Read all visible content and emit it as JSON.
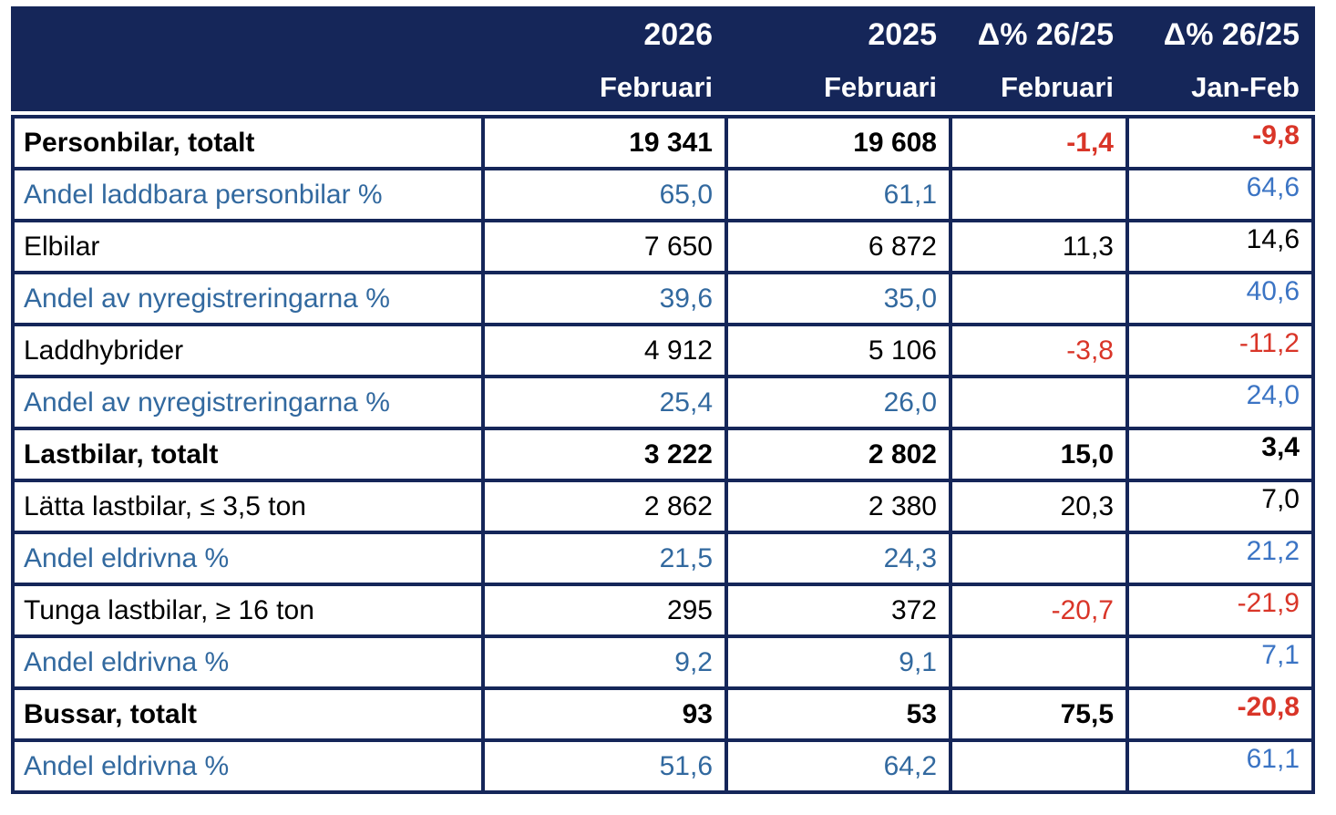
{
  "colors": {
    "header_background": "#152659",
    "grid_border": "#152659",
    "header_text": "#FFFFFF",
    "body_text": "#000000",
    "share_row_blue": "#32699F",
    "janfeb_blue": "#3B74C4",
    "negative_red": "#D93528"
  },
  "chart_data": {
    "type": "table",
    "columns": [
      {
        "year": "2026",
        "period": "Februari"
      },
      {
        "year": "2025",
        "period": "Februari"
      },
      {
        "year": "Δ% 26/25",
        "period": "Februari"
      },
      {
        "year": "Δ% 26/25",
        "period": "Jan-Feb"
      }
    ],
    "rows": [
      {
        "label": "Personbilar, totalt",
        "values": [
          "19 341",
          "19 608",
          "-1,4",
          "-9,8"
        ],
        "style": "total"
      },
      {
        "label": "Andel laddbara personbilar %",
        "values": [
          "65,0",
          "61,1",
          "",
          "64,6"
        ],
        "style": "share"
      },
      {
        "label": "Elbilar",
        "values": [
          "7 650",
          "6 872",
          "11,3",
          "14,6"
        ],
        "style": "sub"
      },
      {
        "label": "Andel av nyregistreringarna %",
        "values": [
          "39,6",
          "35,0",
          "",
          "40,6"
        ],
        "style": "share"
      },
      {
        "label": "Laddhybrider",
        "values": [
          "4 912",
          "5 106",
          "-3,8",
          "-11,2"
        ],
        "style": "sub"
      },
      {
        "label": "Andel av nyregistreringarna %",
        "values": [
          "25,4",
          "26,0",
          "",
          "24,0"
        ],
        "style": "share"
      },
      {
        "label": "Lastbilar, totalt",
        "values": [
          "3 222",
          "2 802",
          "15,0",
          "3,4"
        ],
        "style": "total"
      },
      {
        "label": "Lätta lastbilar, ≤ 3,5 ton",
        "values": [
          "2 862",
          "2 380",
          "20,3",
          "7,0"
        ],
        "style": "sub"
      },
      {
        "label": "Andel eldrivna %",
        "values": [
          "21,5",
          "24,3",
          "",
          "21,2"
        ],
        "style": "share"
      },
      {
        "label": "Tunga lastbilar, ≥ 16 ton",
        "values": [
          "295",
          "372",
          "-20,7",
          "-21,9"
        ],
        "style": "sub"
      },
      {
        "label": "Andel eldrivna %",
        "values": [
          "9,2",
          "9,1",
          "",
          "7,1"
        ],
        "style": "share"
      },
      {
        "label": "Bussar, totalt",
        "values": [
          "93",
          "53",
          "75,5",
          "-20,8"
        ],
        "style": "total"
      },
      {
        "label": "Andel eldrivna %",
        "values": [
          "51,6",
          "64,2",
          "",
          "61,1"
        ],
        "style": "share"
      }
    ]
  }
}
